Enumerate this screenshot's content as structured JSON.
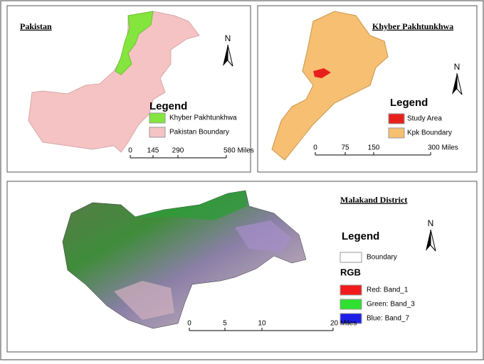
{
  "panels": [
    {
      "title": "Pakistan",
      "north": "N",
      "legend": {
        "title": "Legend",
        "items": [
          {
            "label": "Khyber Pakhtunkhwa",
            "color": "#84e53e"
          },
          {
            "label": "Pakistan Boundary",
            "color": "#f5c3c3"
          }
        ]
      },
      "scale": [
        "0",
        "145",
        "290",
        "580 Miles"
      ]
    },
    {
      "title": "Khyber Pakhtunkhwa",
      "north": "N",
      "legend": {
        "title": "Legend",
        "items": [
          {
            "label": "Study Area",
            "color": "#e8201c"
          },
          {
            "label": "Kpk Boundary",
            "color": "#f7bf72"
          }
        ]
      },
      "scale": [
        "0",
        "75",
        "150",
        "300 Miles"
      ]
    },
    {
      "title": "Malakand District",
      "north": "N",
      "legend": {
        "title": "Legend",
        "items": [
          {
            "label": "Boundary",
            "color": "#ffffff"
          }
        ],
        "subtitle": "RGB",
        "subitems": [
          {
            "label": "Red:  Band_1",
            "color": "#f21b1b"
          },
          {
            "label": "Green: Band_3",
            "color": "#2fe02f"
          },
          {
            "label": "Blue:  Band_7",
            "color": "#1f1fe6"
          }
        ]
      },
      "scale": [
        "0",
        "5",
        "10",
        "20 Miles"
      ]
    }
  ]
}
